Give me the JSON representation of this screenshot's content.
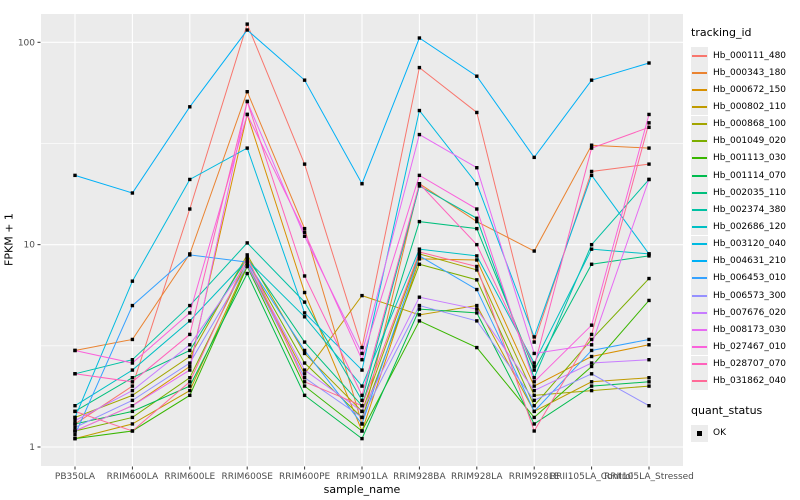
{
  "figure": {
    "x_axis_title": "sample_name",
    "y_axis_title": "FPKM + 1"
  },
  "legend": {
    "tracking_title": "tracking_id",
    "quant_title": "quant_status",
    "quant_items": [
      {
        "label": "OK",
        "marker": "black-square"
      }
    ]
  },
  "colors": {
    "panel_bg": "#EBEBEB",
    "grid_major": "#FFFFFF",
    "grid_minor": "#F5F5F5",
    "axis_text": "#4D4D4D",
    "tick": "#333333",
    "point": "#000000",
    "legend_key_bg": "#ECECEC"
  },
  "chart_data": {
    "type": "line",
    "title": "",
    "xlabel": "sample_name",
    "ylabel": "FPKM + 1",
    "x_type": "categorical",
    "y_scale": "log10",
    "ylim": [
      1,
      140
    ],
    "y_breaks": [
      1,
      10,
      100
    ],
    "y_minor_breaks": [
      3.162,
      31.62
    ],
    "grid": true,
    "legend_position": "right",
    "point_marker": "black-square",
    "categories": [
      "PB350LA",
      "RRIM600LA",
      "RRIM600LE",
      "RRIM600SE",
      "RRIM600PE",
      "RRIM901LA",
      "RRIM928BA",
      "RRIM928LA",
      "RRIM928LE",
      "RRII105LA_Control",
      "RRII105LA_Stressed"
    ],
    "series": [
      {
        "name": "Hb_000111_480",
        "color": "#F8766D",
        "values": [
          1.3,
          2.0,
          15,
          123,
          25,
          3.1,
          75,
          45,
          3.3,
          23,
          25
        ]
      },
      {
        "name": "Hb_000343_180",
        "color": "#EA8331",
        "values": [
          3.0,
          3.4,
          9.0,
          57,
          12,
          1.3,
          20,
          13,
          9.3,
          31,
          30
        ]
      },
      {
        "name": "Hb_000672_150",
        "color": "#D89000",
        "values": [
          1.2,
          1.6,
          2.5,
          44,
          5.8,
          1.2,
          8.5,
          8.4,
          2.0,
          2.8,
          3.2
        ]
      },
      {
        "name": "Hb_000802_110",
        "color": "#C09B00",
        "values": [
          1.1,
          1.3,
          1.9,
          8.0,
          2.3,
          5.6,
          4.5,
          5.0,
          1.5,
          2.1,
          2.2
        ]
      },
      {
        "name": "Hb_000868_100",
        "color": "#A3A500",
        "values": [
          1.4,
          1.8,
          2.8,
          8.9,
          2.9,
          1.5,
          9.0,
          7.5,
          1.8,
          1.9,
          2.0
        ]
      },
      {
        "name": "Hb_001049_020",
        "color": "#7CAE00",
        "values": [
          1.2,
          1.4,
          2.2,
          8.3,
          2.6,
          1.4,
          8.0,
          6.7,
          1.6,
          3.4,
          6.8
        ]
      },
      {
        "name": "Hb_001113_030",
        "color": "#39B600",
        "values": [
          1.1,
          1.2,
          1.8,
          7.8,
          2.0,
          1.2,
          4.2,
          3.1,
          1.4,
          2.5,
          5.3
        ]
      },
      {
        "name": "Hb_001114_070",
        "color": "#00BB4E",
        "values": [
          1.3,
          1.5,
          2.0,
          7.2,
          1.8,
          1.1,
          4.8,
          4.6,
          1.3,
          2.0,
          2.1
        ]
      },
      {
        "name": "Hb_002035_110",
        "color": "#00BF7D",
        "values": [
          1.5,
          2.2,
          3.0,
          8.6,
          3.3,
          1.6,
          13,
          12,
          2.4,
          8.0,
          8.8
        ]
      },
      {
        "name": "Hb_002374_380",
        "color": "#00C1A3",
        "values": [
          2.3,
          2.7,
          5.0,
          10.2,
          5.2,
          1.7,
          19.5,
          13.5,
          2.2,
          10,
          21
        ]
      },
      {
        "name": "Hb_002686_120",
        "color": "#00BFC4",
        "values": [
          1.6,
          2.4,
          4.2,
          8.4,
          4.4,
          2.0,
          9.5,
          8.8,
          2.6,
          9.5,
          9.0
        ]
      },
      {
        "name": "Hb_003120_040",
        "color": "#00BAE0",
        "values": [
          1.4,
          6.6,
          21,
          30,
          4.6,
          2.4,
          46,
          20,
          3.5,
          22,
          9.0
        ]
      },
      {
        "name": "Hb_004631_210",
        "color": "#00B0F6",
        "values": [
          22,
          18,
          48,
          115,
          65,
          20,
          105,
          68,
          27,
          65,
          79
        ]
      },
      {
        "name": "Hb_006453_010",
        "color": "#35A2FF",
        "values": [
          1.15,
          5.0,
          8.9,
          8.2,
          3.0,
          1.3,
          8.8,
          6.0,
          1.5,
          3.0,
          3.4
        ]
      },
      {
        "name": "Hb_006573_300",
        "color": "#9590FF",
        "values": [
          1.25,
          1.7,
          2.6,
          7.9,
          2.2,
          1.4,
          5.0,
          4.2,
          1.7,
          2.3,
          1.6
        ]
      },
      {
        "name": "Hb_007676_020",
        "color": "#C77CFF",
        "values": [
          1.35,
          1.9,
          3.2,
          8.1,
          2.4,
          1.5,
          5.5,
          4.8,
          1.9,
          2.6,
          2.7
        ]
      },
      {
        "name": "Hb_008173_030",
        "color": "#E76BF3",
        "values": [
          1.2,
          1.6,
          2.4,
          51,
          11,
          2.9,
          35,
          24,
          2.9,
          3.2,
          21
        ]
      },
      {
        "name": "Hb_027467_010",
        "color": "#FA62DB",
        "values": [
          3.0,
          2.6,
          4.6,
          44,
          11.5,
          2.7,
          22,
          15,
          2.1,
          4.0,
          44
        ]
      },
      {
        "name": "Hb_028707_070",
        "color": "#FF62BC",
        "values": [
          2.3,
          2.1,
          3.6,
          51,
          7.0,
          1.8,
          20,
          10,
          2.5,
          30,
          38
        ]
      },
      {
        "name": "Hb_031862_040",
        "color": "#FF6A98",
        "values": [
          1.5,
          1.2,
          2.1,
          8.7,
          2.1,
          1.6,
          9.2,
          7.8,
          1.2,
          3.6,
          40
        ]
      }
    ]
  }
}
